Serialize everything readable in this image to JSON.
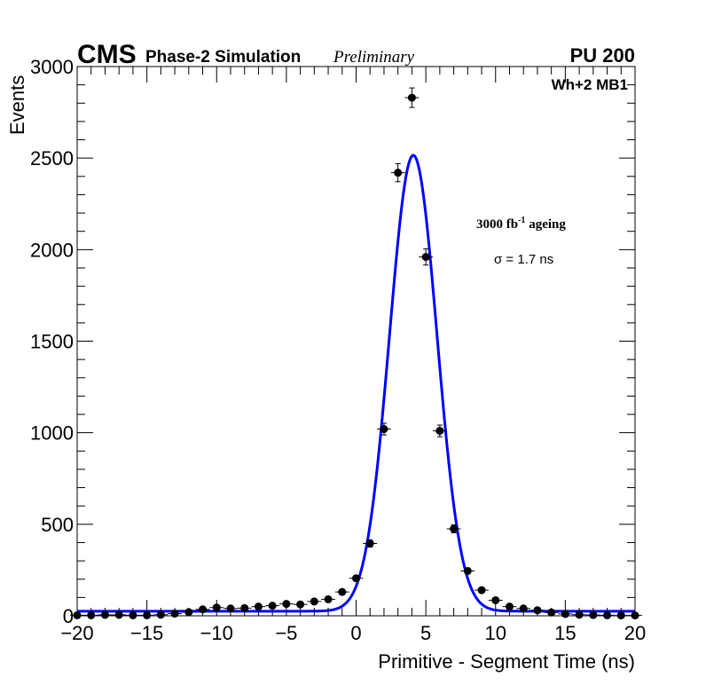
{
  "header": {
    "experiment": "CMS",
    "subtitle": "Phase-2 Simulation",
    "status": "Preliminary",
    "pileup": "PU 200"
  },
  "annotations": {
    "chamber": "Wh+2 MB1",
    "ageing_prefix": "3000 fb",
    "ageing_exponent": "-1",
    "ageing_suffix": " ageing",
    "sigma": "σ = 1.7 ns"
  },
  "chart_data": {
    "type": "scatter",
    "title": "",
    "xlabel": "Primitive - Segment Time (ns)",
    "ylabel": "Events",
    "xlim": [
      -20,
      20
    ],
    "ylim": [
      0,
      3000
    ],
    "x_ticks": [
      -20,
      -15,
      -10,
      -5,
      0,
      5,
      10,
      15,
      20
    ],
    "x_tick_labels": [
      "−20",
      "−15",
      "−10",
      "−5",
      "0",
      "5",
      "10",
      "15",
      "20"
    ],
    "y_ticks": [
      0,
      500,
      1000,
      1500,
      2000,
      2500,
      3000
    ],
    "y_tick_labels": [
      "0",
      "500",
      "1000",
      "1500",
      "2000",
      "2500",
      "3000"
    ],
    "grid": false,
    "colors": {
      "points": "#000000",
      "fit": "#0000ff"
    },
    "series": [
      {
        "type": "points_with_errors",
        "bin_half_width": 0.5,
        "x": [
          -20,
          -19,
          -18,
          -17,
          -16,
          -15,
          -14,
          -13,
          -12,
          -11,
          -10,
          -9,
          -8,
          -7,
          -6,
          -5,
          -4,
          -3,
          -2,
          -1,
          0,
          1,
          2,
          3,
          4,
          5,
          6,
          7,
          8,
          9,
          10,
          11,
          12,
          13,
          14,
          15,
          16,
          17,
          18,
          19,
          20
        ],
        "y": [
          3,
          3,
          5,
          5,
          3,
          3,
          6,
          12,
          20,
          35,
          45,
          40,
          42,
          50,
          55,
          65,
          62,
          78,
          90,
          130,
          205,
          395,
          1020,
          2420,
          2830,
          1960,
          1010,
          475,
          245,
          140,
          85,
          50,
          40,
          30,
          18,
          10,
          6,
          4,
          3,
          2,
          2
        ]
      },
      {
        "type": "gaussian_fit",
        "amplitude": 2490,
        "mean": 4.1,
        "sigma": 1.7,
        "baseline": 25
      }
    ]
  }
}
